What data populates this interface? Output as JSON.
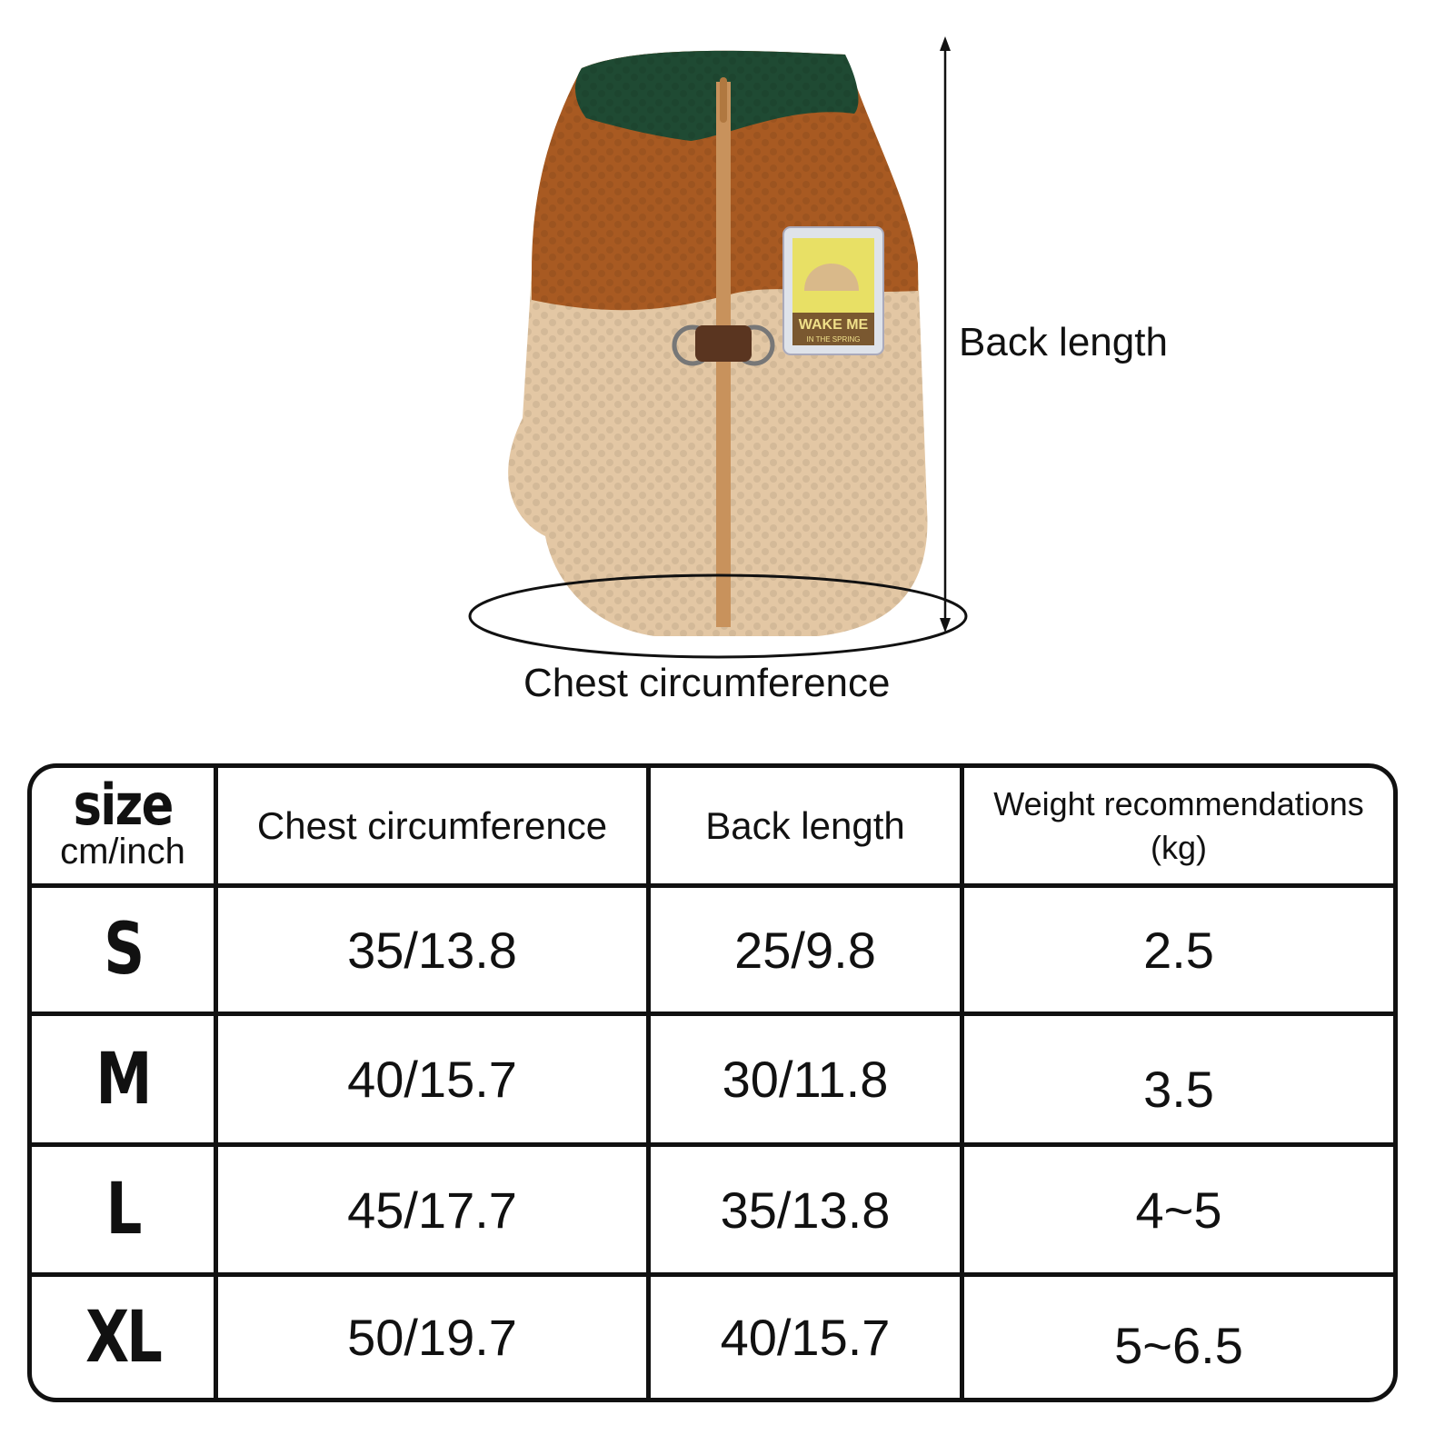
{
  "diagram": {
    "back_length_label": "Back length",
    "chest_label": "Chest circumference",
    "patch_text_line1": "WAKE ME",
    "patch_text_line2": "IN THE SPRING",
    "colors": {
      "collar": "#1f4a33",
      "band": "#a85a22",
      "body": "#e3c7a4"
    }
  },
  "table": {
    "header": {
      "size": "size",
      "unit": "cm/inch",
      "chest": "Chest circumference",
      "back": "Back length",
      "weight_line1": "Weight recommendations",
      "weight_line2": "(kg)"
    },
    "rows": [
      {
        "size": "S",
        "chest": "35/13.8",
        "back": "25/9.8",
        "weight": "2.5"
      },
      {
        "size": "M",
        "chest": "40/15.7",
        "back": "30/11.8",
        "weight": "3.5"
      },
      {
        "size": "L",
        "chest": "45/17.7",
        "back": "35/13.8",
        "weight": "4~5"
      },
      {
        "size": "XL",
        "chest": "50/19.7",
        "back": "40/15.7",
        "weight": "5~6.5"
      }
    ]
  }
}
